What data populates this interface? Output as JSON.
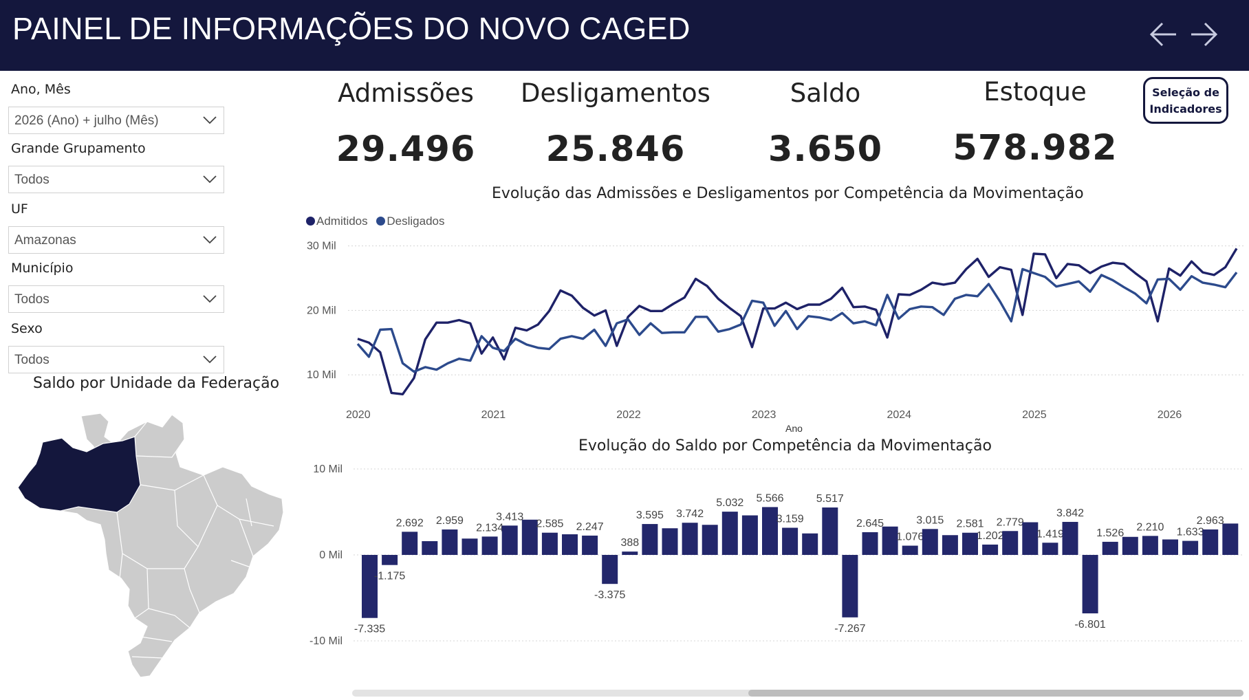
{
  "header": {
    "title": "PAINEL DE INFORMAÇÕES DO NOVO CAGED",
    "back_icon": "arrow-left-icon",
    "forward_icon": "arrow-right-icon"
  },
  "filters": [
    {
      "label": "Ano, Mês",
      "value": "2026 (Ano) + julho (Mês)"
    },
    {
      "label": "Grande Grupamento",
      "value": "Todos"
    },
    {
      "label": "UF",
      "value": "Amazonas"
    },
    {
      "label": "Município",
      "value": "Todos"
    },
    {
      "label": "Sexo",
      "value": "Todos"
    }
  ],
  "kpis": [
    {
      "label": "Admissões",
      "value": "29.496"
    },
    {
      "label": "Desligamentos",
      "value": "25.846"
    },
    {
      "label": "Saldo",
      "value": "3.650"
    },
    {
      "label": "Estoque",
      "value": "578.982"
    }
  ],
  "indicator_button": {
    "line1": "Seleção de",
    "line2": "Indicadores"
  },
  "map": {
    "title": "Saldo por Unidade da Federação",
    "highlighted_state": "Amazonas",
    "highlight_color": "#14173d",
    "base_color": "#cccccc"
  },
  "colors": {
    "header_bg": "#14173d",
    "admitidos": "#1e2268",
    "desligados": "#2c4a8c",
    "saldo_bar": "#23276b"
  },
  "scrollbar": {
    "position": 0.58,
    "visible_fraction": 0.56
  },
  "chart_data": [
    {
      "type": "line",
      "title": "Evolução das Admissões e Desligamentos por Competência da Movimentação",
      "xlabel": "Ano",
      "ylabel": "",
      "x_ticks": [
        "2020",
        "2021",
        "2022",
        "2023",
        "2024",
        "2025",
        "2026"
      ],
      "y_ticks": [
        "10 Mil",
        "20 Mil",
        "30 Mil"
      ],
      "ylim": [
        5000,
        30500
      ],
      "x_start": "2020-01",
      "x_end": "2026-07",
      "legend": "top-left",
      "grid": true,
      "series": [
        {
          "name": "Admitidos",
          "color": "#1e2268",
          "values": [
            15600,
            15000,
            13500,
            7200,
            7000,
            9500,
            15500,
            18100,
            18100,
            18500,
            18000,
            13300,
            15800,
            12400,
            17300,
            16900,
            17800,
            19900,
            23100,
            22300,
            20400,
            19200,
            20000,
            14500,
            19000,
            20700,
            19900,
            19900,
            21000,
            22000,
            24900,
            23800,
            21800,
            20400,
            19100,
            14300,
            20300,
            20300,
            21200,
            20200,
            20900,
            20900,
            21800,
            23500,
            20500,
            20600,
            20100,
            15800,
            22500,
            22400,
            23200,
            24300,
            24000,
            24300,
            26400,
            28000,
            25200,
            26700,
            26300,
            19300,
            28800,
            28700,
            25000,
            27200,
            27000,
            25800,
            26800,
            27400,
            27200,
            25800,
            24500,
            18300,
            26500,
            25400,
            27600,
            25900,
            25500,
            26700,
            29600
          ]
        },
        {
          "name": "Desligados",
          "color": "#2c4a8c",
          "values": [
            14800,
            12800,
            17000,
            17100,
            11800,
            10500,
            11200,
            10800,
            11800,
            12500,
            12200,
            16000,
            14200,
            13700,
            15600,
            14700,
            14200,
            14000,
            15600,
            16000,
            15600,
            17000,
            14500,
            18000,
            18600,
            16200,
            18000,
            16500,
            16600,
            16600,
            19000,
            19000,
            16700,
            17100,
            17800,
            21500,
            21200,
            17600,
            19900,
            17100,
            19100,
            18900,
            18500,
            19600,
            18000,
            18300,
            17700,
            22400,
            18700,
            20200,
            20600,
            20500,
            19300,
            21800,
            22400,
            22200,
            24100,
            21400,
            18300,
            26400,
            25800,
            25200,
            23700,
            24100,
            24500,
            22900,
            25500,
            24700,
            23600,
            22600,
            21100,
            24800,
            24900,
            23200,
            25300,
            24300,
            24000,
            23600,
            25900
          ]
        }
      ]
    },
    {
      "type": "bar",
      "title": "Evolução do Saldo por Competência da Movimentação",
      "xlabel": "",
      "ylabel": "",
      "y_ticks": [
        "-10 Mil",
        "0 Mil",
        "10 Mil"
      ],
      "ylim": [
        -10000,
        10000
      ],
      "grid": true,
      "values": [
        -7335,
        -1175,
        2692,
        1600,
        2959,
        1900,
        2134,
        3413,
        4100,
        2585,
        2400,
        2247,
        -3375,
        388,
        3595,
        3100,
        3742,
        3500,
        5032,
        4600,
        5566,
        3159,
        2500,
        5517,
        -7267,
        2645,
        3300,
        1076,
        3015,
        2300,
        2581,
        1202,
        2779,
        3800,
        1419,
        3842,
        -6801,
        1526,
        2100,
        2210,
        1800,
        1633,
        2963,
        3650
      ],
      "labels": [
        "-7.335",
        "-1.175",
        "2.692",
        "",
        "2.959",
        "",
        "2.134",
        "3.413",
        "",
        "2.585",
        "",
        "2.247",
        "-3.375",
        "388",
        "3.595",
        "",
        "3.742",
        "",
        "5.032",
        "",
        "5.566",
        "3.159",
        "",
        "5.517",
        "-7.267",
        "2.645",
        "",
        "1.076",
        "3.015",
        "",
        "2.581",
        "1.202",
        "2.779",
        "",
        "1.419",
        "3.842",
        "-6.801",
        "1.526",
        "",
        "2.210",
        "",
        "1.633",
        "2.963",
        ""
      ]
    }
  ]
}
